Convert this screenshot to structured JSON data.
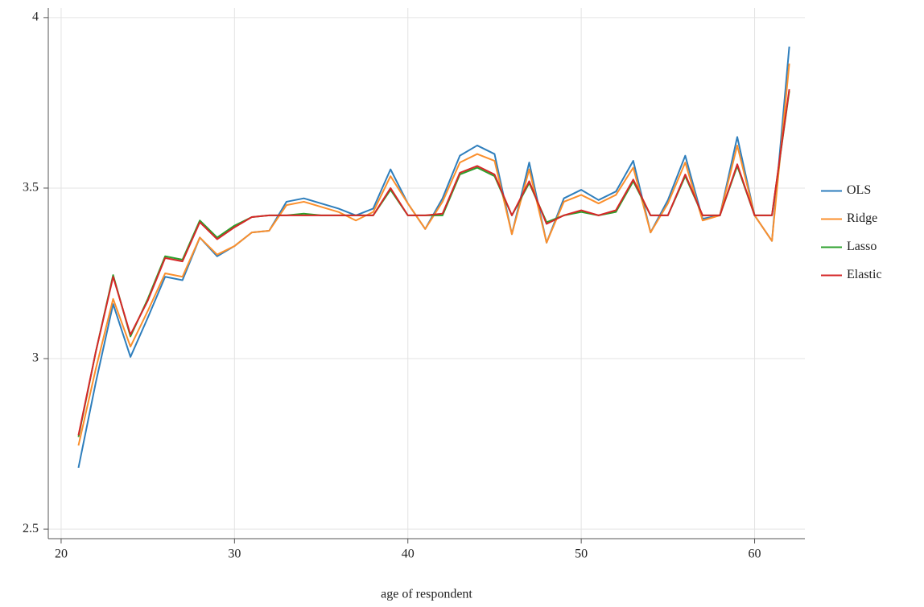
{
  "chart_data": {
    "type": "line",
    "x_label": "age of respondent",
    "x": [
      21,
      22,
      23,
      24,
      25,
      26,
      27,
      28,
      29,
      30,
      31,
      32,
      33,
      34,
      35,
      36,
      37,
      38,
      39,
      40,
      41,
      42,
      43,
      44,
      45,
      46,
      47,
      48,
      49,
      50,
      51,
      52,
      53,
      54,
      55,
      56,
      57,
      58,
      59,
      60,
      61,
      62
    ],
    "series": [
      {
        "name": "OLS",
        "color": "#2e7ebc",
        "values": [
          2.68,
          2.93,
          3.16,
          3.005,
          3.12,
          3.24,
          3.23,
          3.355,
          3.3,
          3.33,
          3.37,
          3.375,
          3.46,
          3.47,
          3.455,
          3.44,
          3.42,
          3.44,
          3.555,
          3.455,
          3.38,
          3.47,
          3.595,
          3.625,
          3.6,
          3.365,
          3.575,
          3.34,
          3.47,
          3.495,
          3.465,
          3.49,
          3.58,
          3.37,
          3.465,
          3.595,
          3.41,
          3.42,
          3.65,
          3.42,
          3.345,
          3.915
        ]
      },
      {
        "name": "Ridge",
        "color": "#fb8f2c",
        "values": [
          2.745,
          2.97,
          3.175,
          3.035,
          3.14,
          3.25,
          3.24,
          3.355,
          3.305,
          3.33,
          3.37,
          3.375,
          3.45,
          3.46,
          3.445,
          3.43,
          3.405,
          3.43,
          3.535,
          3.455,
          3.38,
          3.46,
          3.575,
          3.6,
          3.58,
          3.365,
          3.555,
          3.34,
          3.46,
          3.48,
          3.455,
          3.48,
          3.56,
          3.37,
          3.455,
          3.575,
          3.405,
          3.42,
          3.625,
          3.42,
          3.345,
          3.865
        ]
      },
      {
        "name": "Lasso",
        "color": "#2ca02c",
        "values": [
          2.77,
          3.02,
          3.245,
          3.065,
          3.175,
          3.3,
          3.29,
          3.405,
          3.355,
          3.39,
          3.415,
          3.42,
          3.42,
          3.425,
          3.42,
          3.42,
          3.42,
          3.42,
          3.495,
          3.42,
          3.42,
          3.42,
          3.54,
          3.56,
          3.535,
          3.42,
          3.515,
          3.4,
          3.42,
          3.43,
          3.42,
          3.43,
          3.52,
          3.42,
          3.42,
          3.535,
          3.42,
          3.42,
          3.565,
          3.42,
          3.42,
          3.785
        ]
      },
      {
        "name": "Elastic",
        "color": "#d62728",
        "values": [
          2.775,
          3.02,
          3.24,
          3.07,
          3.17,
          3.295,
          3.285,
          3.4,
          3.35,
          3.385,
          3.415,
          3.42,
          3.42,
          3.42,
          3.42,
          3.42,
          3.42,
          3.42,
          3.5,
          3.42,
          3.42,
          3.425,
          3.545,
          3.565,
          3.54,
          3.42,
          3.52,
          3.395,
          3.42,
          3.435,
          3.42,
          3.435,
          3.525,
          3.42,
          3.42,
          3.54,
          3.42,
          3.42,
          3.57,
          3.42,
          3.42,
          3.79
        ]
      }
    ],
    "xlim": [
      19.26,
      62.9
    ],
    "xticks": [
      20,
      30,
      40,
      50,
      60
    ],
    "ylim": [
      2.472,
      4.028
    ],
    "yticks": [
      2.5,
      3,
      3.5,
      4
    ],
    "grid": true,
    "legend": "right"
  }
}
